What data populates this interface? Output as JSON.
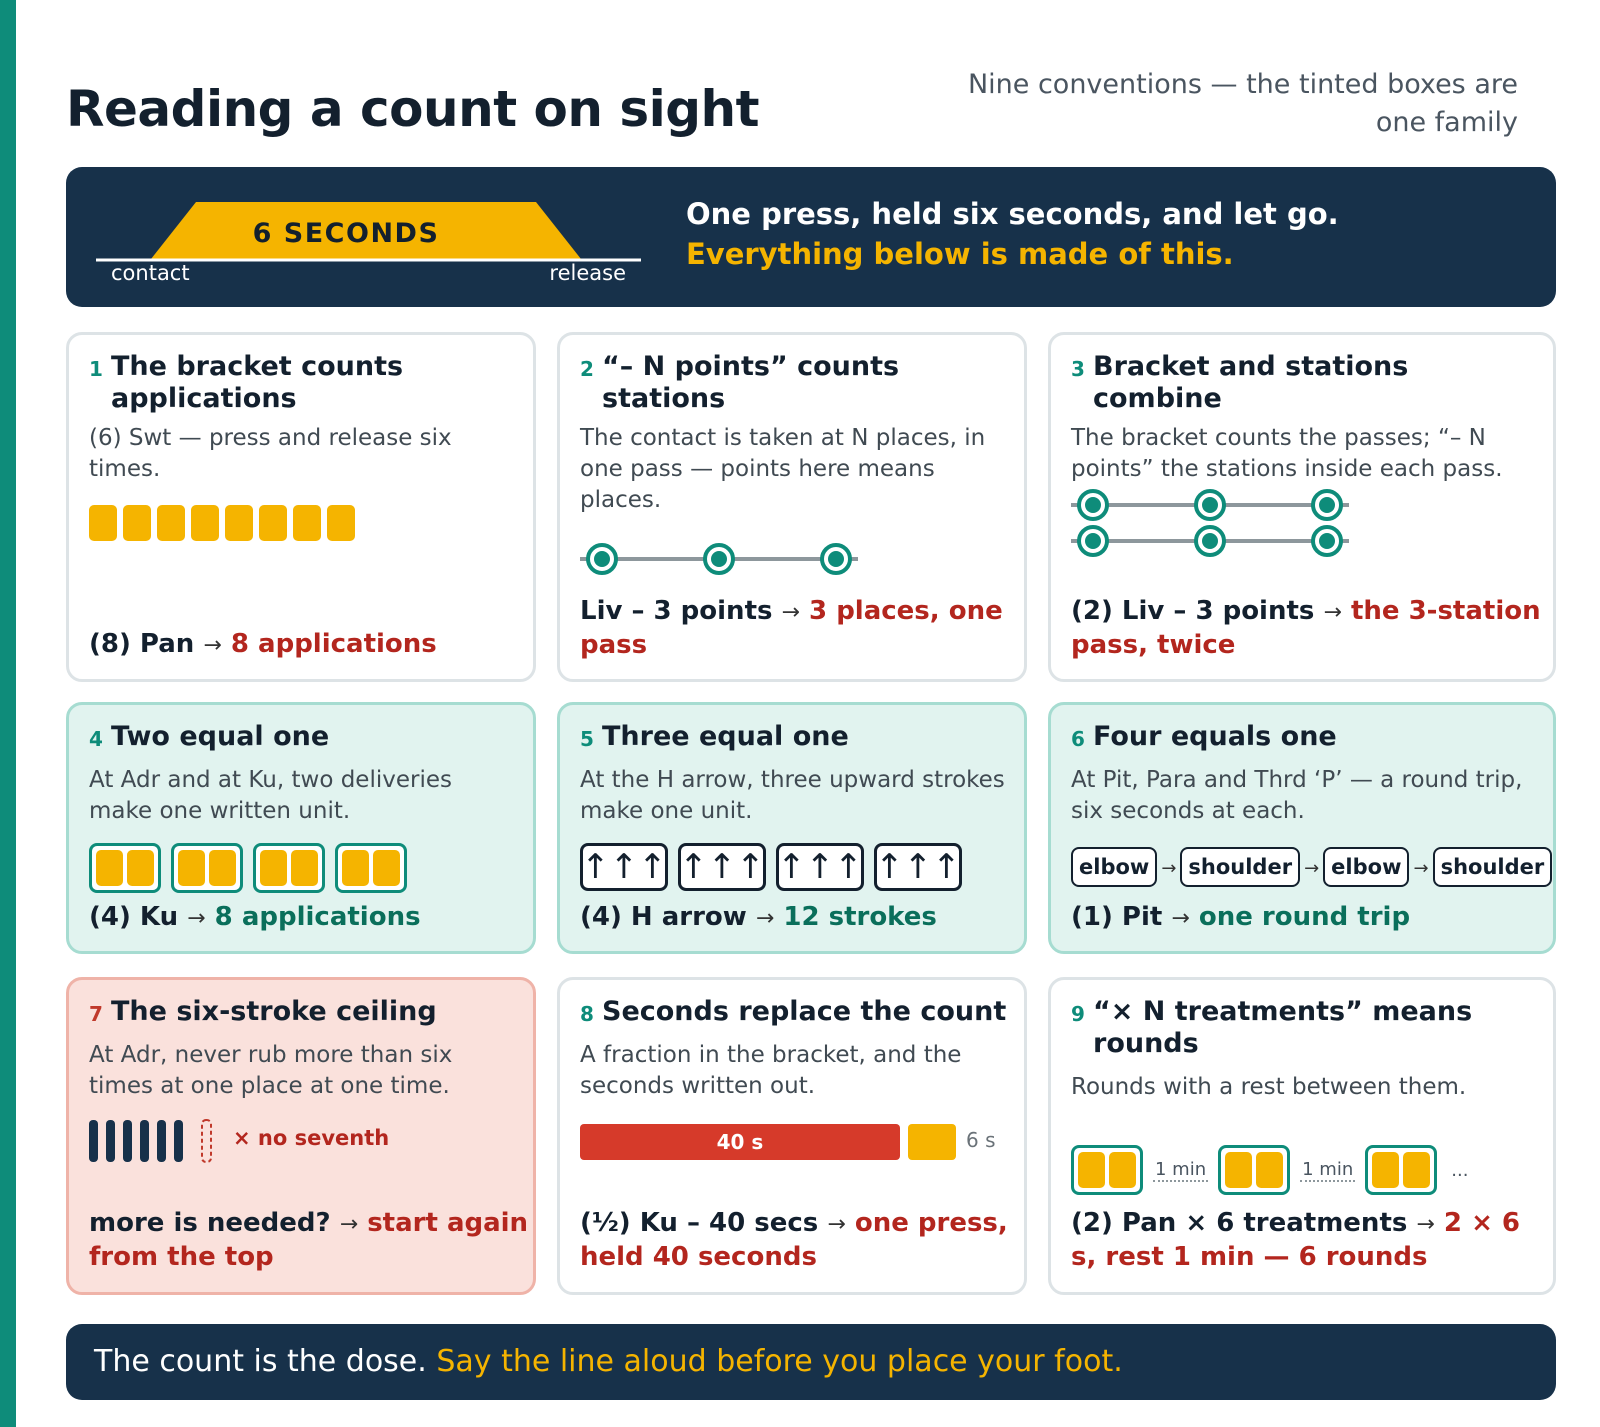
{
  "title": "Reading a count on sight",
  "subtitle": "Nine conventions — the tinted boxes are one family",
  "hero": {
    "badge": "6 SECONDS",
    "left_label": "contact",
    "right_label": "release",
    "line1": "One press, held six seconds, and let go.",
    "line2": "Everything below is made of this."
  },
  "colors": {
    "navy": "#17314a",
    "yellow": "#f5b400",
    "teal": "#0e8c7a",
    "red": "#b3261e"
  },
  "cards": [
    {
      "num": "1",
      "title": "The bracket counts applications",
      "desc": "(6) Swt — press and release six times.",
      "squares": 8,
      "ex_a": "(8) Pan",
      "ex_b": "8 applications"
    },
    {
      "num": "2",
      "title": "“– N points” counts stations",
      "desc": "The contact is taken at N places, in one pass — points here means places.",
      "stations": 3,
      "ex_a": "Liv – 3 points",
      "ex_b": "3 places, one pass"
    },
    {
      "num": "3",
      "title": "Bracket and stations combine",
      "desc": "The bracket counts the passes; “– N points” the stations inside each pass.",
      "passes": 2,
      "stations": 3,
      "ex_a": "(2) Liv – 3 points",
      "ex_b": "the 3-station pass, twice"
    },
    {
      "num": "4",
      "title": "Two equal one",
      "desc": "At Adr and at Ku, two deliveries make one written unit.",
      "groups": 4,
      "ex_a": "(4) Ku",
      "ex_b": "8 applications"
    },
    {
      "num": "5",
      "title": "Three equal one",
      "desc": "At the H arrow, three upward strokes make one unit.",
      "groups": 4,
      "glyph": "↑↑↑",
      "ex_a": "(4) H arrow",
      "ex_b": "12 strokes"
    },
    {
      "num": "6",
      "title": "Four equals one",
      "desc": "At Pit, Para and Thrd ‘P’ — a round trip, six seconds at each.",
      "chips": [
        "elbow",
        "shoulder",
        "elbow",
        "shoulder"
      ],
      "ex_a": "(1) Pit",
      "ex_b": "one round trip"
    },
    {
      "num": "7",
      "title": "The six-stroke ceiling",
      "desc": "At Adr, never rub more than six times at one place at one time.",
      "strokes": 6,
      "no_seventh": "× no seventh",
      "ex_a": "more is needed?",
      "ex_b": "start again from the top"
    },
    {
      "num": "8",
      "title": "Seconds replace the count",
      "desc": "A fraction in the bracket, and the seconds written out.",
      "bar_seconds": 40,
      "bar_label": "40 s",
      "base_seconds": 6,
      "base_label": "6 s",
      "ex_a": "(½) Ku – 40 secs",
      "ex_b": "one press, held 40 seconds"
    },
    {
      "num": "9",
      "title": "“× N treatments” means rounds",
      "desc": "Rounds with a rest between them.",
      "rest_label": "1 min",
      "ellipsis": "...",
      "ex_a": "(2) Pan × 6 treatments",
      "ex_b": "2 × 6 s, rest 1 min — 6 rounds"
    }
  ],
  "footer": {
    "white": "The count is the dose.",
    "yellow": "Say the line aloud before you place your foot."
  }
}
